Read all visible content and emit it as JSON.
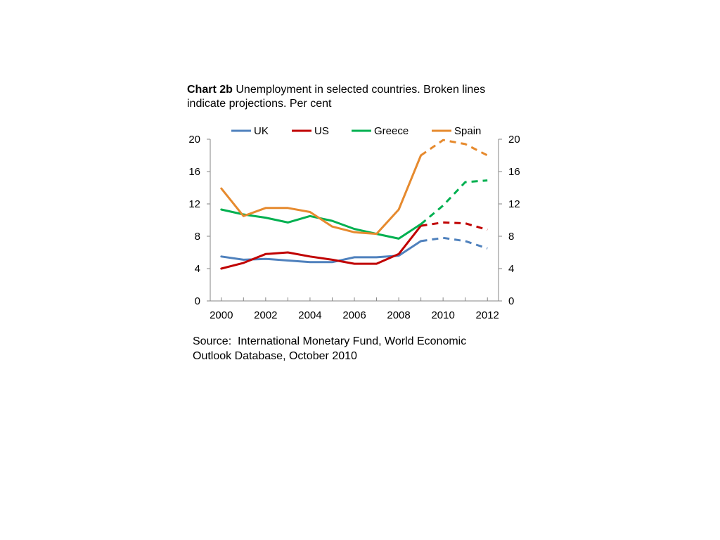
{
  "title": {
    "lead": "Chart 2b",
    "text": "Unemployment in selected countries. Broken lines indicate projections. Per cent"
  },
  "source": "Source:  International Monetary Fund, World Economic Outlook Database, October 2010",
  "chart_data": {
    "type": "line",
    "title": "Chart 2b Unemployment in selected countries. Broken lines indicate projections. Per cent",
    "xlabel": "",
    "ylabel": "",
    "x": [
      2000,
      2001,
      2002,
      2003,
      2004,
      2005,
      2006,
      2007,
      2008,
      2009,
      2010,
      2011,
      2012
    ],
    "xlim": [
      1999.5,
      2012.5
    ],
    "x_ticks": [
      "2000",
      "2002",
      "2004",
      "2006",
      "2008",
      "2010",
      "2012"
    ],
    "ylim": [
      0,
      20
    ],
    "y_ticks": [
      "0",
      "4",
      "8",
      "12",
      "16",
      "20"
    ],
    "y_axes": [
      "left",
      "right"
    ],
    "grid": false,
    "legend_position": "top",
    "projection_start": 2009,
    "series": [
      {
        "name": "UK",
        "color": "#4f81bd",
        "values": [
          5.5,
          5.1,
          5.2,
          5.0,
          4.8,
          4.8,
          5.4,
          5.4,
          5.6,
          7.4,
          7.8,
          7.4,
          6.5
        ]
      },
      {
        "name": "US",
        "color": "#c00000",
        "values": [
          4.0,
          4.7,
          5.8,
          6.0,
          5.5,
          5.1,
          4.6,
          4.6,
          5.8,
          9.3,
          9.7,
          9.6,
          8.8
        ]
      },
      {
        "name": "Greece",
        "color": "#00b050",
        "values": [
          11.3,
          10.7,
          10.3,
          9.7,
          10.5,
          9.9,
          8.9,
          8.3,
          7.7,
          9.5,
          11.8,
          14.7,
          14.9
        ]
      },
      {
        "name": "Spain",
        "color": "#e68a2e",
        "values": [
          13.9,
          10.5,
          11.5,
          11.5,
          11.0,
          9.2,
          8.5,
          8.3,
          11.3,
          18.0,
          19.9,
          19.4,
          18.0
        ]
      }
    ]
  }
}
